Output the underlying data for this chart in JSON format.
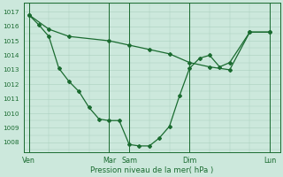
{
  "background_color": "#cce8dc",
  "grid_color": "#aacfbf",
  "line_color": "#1a6b30",
  "marker_color": "#1a6b30",
  "xlabel": "Pression niveau de la mer( hPa )",
  "ylim": [
    1007.3,
    1017.6
  ],
  "yticks": [
    1008,
    1009,
    1010,
    1011,
    1012,
    1013,
    1014,
    1015,
    1016,
    1017
  ],
  "day_labels": [
    "Ven",
    "Mar",
    "Sam",
    "Dim",
    "Lun"
  ],
  "day_x": [
    0,
    8,
    10,
    16,
    24
  ],
  "xlim": [
    -0.5,
    25
  ],
  "series1_x": [
    0,
    2,
    4,
    8,
    10,
    12,
    14,
    16,
    18,
    20,
    22,
    24
  ],
  "series1_y": [
    1016.8,
    1015.8,
    1015.3,
    1015.0,
    1014.7,
    1014.4,
    1014.1,
    1013.5,
    1013.2,
    1013.0,
    1015.6,
    1015.6
  ],
  "series2_x": [
    0,
    1,
    2,
    3,
    4,
    5,
    6,
    7,
    8,
    9,
    10,
    11,
    12,
    13,
    14,
    15,
    16,
    17,
    18,
    19,
    20,
    22,
    24
  ],
  "series2_y": [
    1016.8,
    1016.1,
    1015.3,
    1013.1,
    1012.2,
    1011.5,
    1010.4,
    1009.6,
    1009.5,
    1009.5,
    1007.85,
    1007.75,
    1007.75,
    1008.3,
    1009.1,
    1011.2,
    1013.1,
    1013.8,
    1014.0,
    1013.2,
    1013.5,
    1015.6,
    1015.6
  ]
}
